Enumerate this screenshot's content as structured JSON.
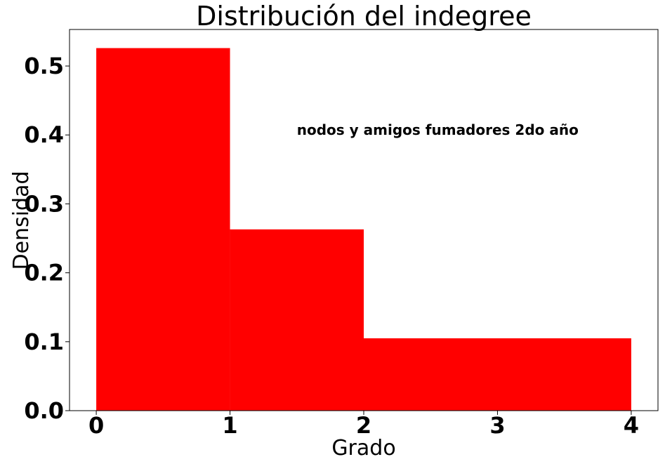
{
  "chart_data": {
    "type": "bar",
    "title": "Distribución del indegree",
    "xlabel": "Grado",
    "ylabel": "Densidad",
    "bins": [
      {
        "x0": 0,
        "x1": 1,
        "value": 0.526
      },
      {
        "x0": 1,
        "x1": 2,
        "value": 0.263
      },
      {
        "x0": 2,
        "x1": 4,
        "value": 0.105
      }
    ],
    "xlim": [
      -0.2,
      4.2
    ],
    "ylim": [
      0,
      0.553
    ],
    "xticks": [
      0,
      1,
      2,
      3,
      4
    ],
    "xtick_labels": [
      "0",
      "1",
      "2",
      "3",
      "4"
    ],
    "yticks": [
      0.0,
      0.1,
      0.2,
      0.3,
      0.4,
      0.5
    ],
    "ytick_labels": [
      "0.0",
      "0.1",
      "0.2",
      "0.3",
      "0.4",
      "0.5"
    ],
    "annotation": {
      "text": "nodos y amigos fumadores 2do año",
      "x": 1.5,
      "y": 0.4
    },
    "grid": false,
    "bar_color": "#ff0000"
  }
}
